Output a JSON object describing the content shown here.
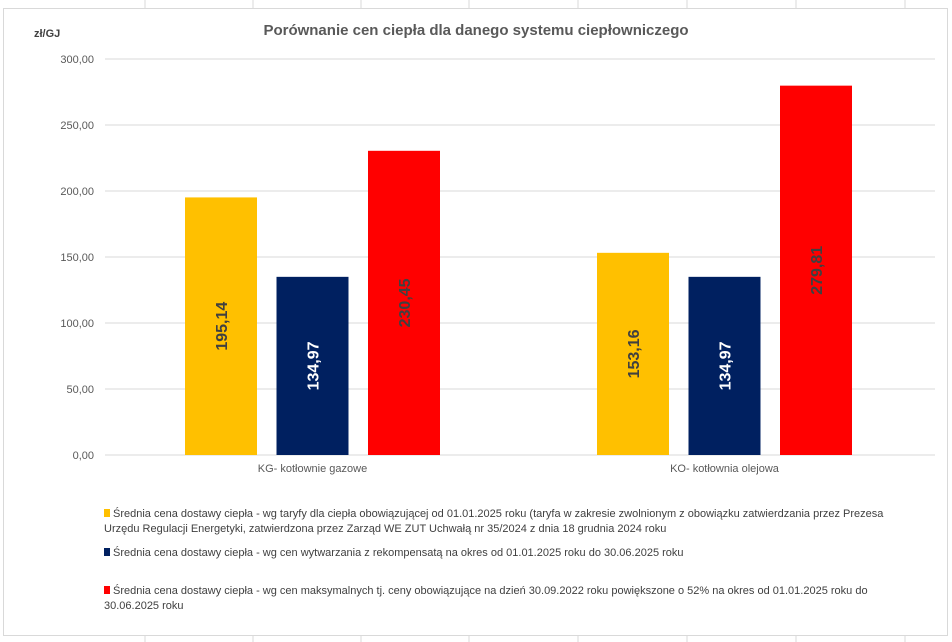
{
  "chart_data": {
    "type": "bar",
    "title": "Porównanie cen ciepła dla danego systemu ciepłowniczego",
    "ylabel": "zł/GJ",
    "xlabel": "",
    "ylim": [
      0,
      300
    ],
    "yticks": [
      "0,00",
      "50,00",
      "100,00",
      "150,00",
      "200,00",
      "250,00",
      "300,00"
    ],
    "ytick_values": [
      0,
      50,
      100,
      150,
      200,
      250,
      300
    ],
    "grid": true,
    "legend_position": "bottom",
    "categories": [
      "KG- kotłownie gazowe",
      "KO- kotłownia olejowa"
    ],
    "series": [
      {
        "name": "Średnia cena dostawy ciepła - wg taryfy dla ciepła obowiązującej od 01.01.2025 roku (taryfa w zakresie zwolnionym z obowiązku zatwierdzania przez Prezesa Urzędu Regulacji Energetyki, zatwierdzona przez Zarząd WE ZUT Uchwałą nr 35/2024 z dnia 18 grudnia 2024 roku",
        "color": "#FFC000",
        "label_color": "#404040",
        "values": [
          195.14,
          153.16
        ],
        "labels": [
          "195,14",
          "153,16"
        ]
      },
      {
        "name": "Średnia cena dostawy ciepła - wg cen wytwarzania z rekompensatą na okres od 01.01.2025 roku do 30.06.2025 roku",
        "color": "#002060",
        "label_color": "#FFFFFF",
        "values": [
          134.97,
          134.97
        ],
        "labels": [
          "134,97",
          "134,97"
        ]
      },
      {
        "name": "Średnia cena dostawy ciepła - wg cen maksymalnych tj. ceny obowiązujące na dzień 30.09.2022 roku powiększone o 52% na okres od 01.01.2025 roku do 30.06.2025 roku",
        "color": "#FF0000",
        "label_color": "#404040",
        "values": [
          230.45,
          279.81
        ],
        "labels": [
          "230,45",
          "279,81"
        ]
      }
    ]
  }
}
